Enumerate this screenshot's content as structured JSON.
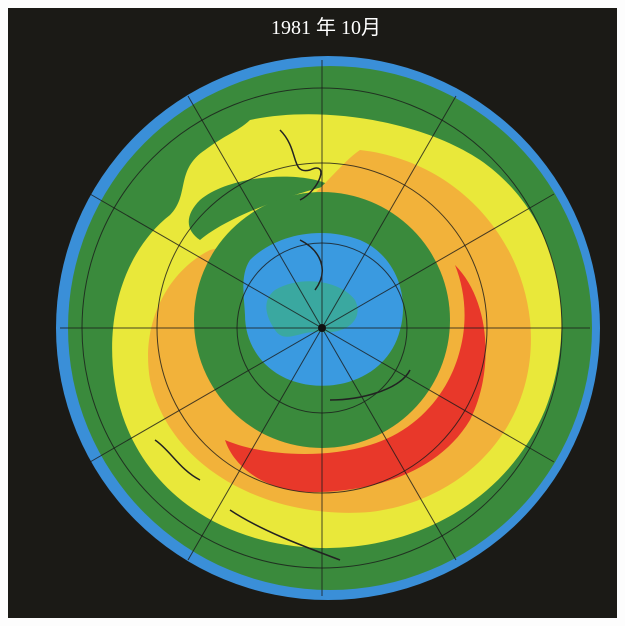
{
  "title": "1981 年 10月"
}
